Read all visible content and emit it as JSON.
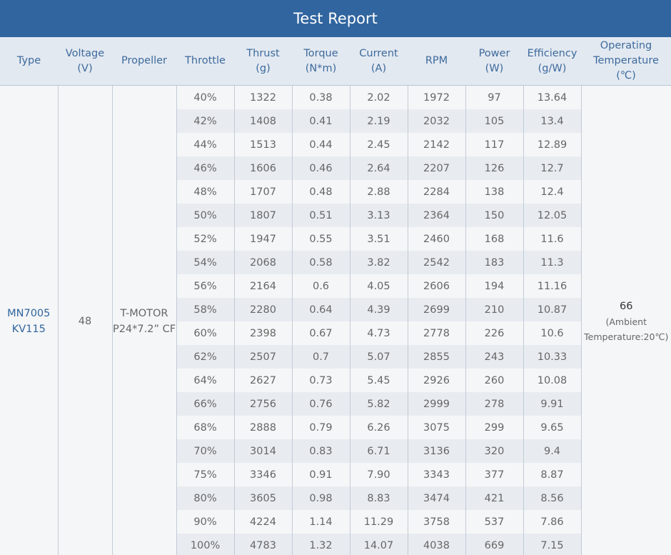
{
  "title": "Test Report",
  "columns": [
    {
      "l1": "Type",
      "l2": "",
      "l3": ""
    },
    {
      "l1": "Voltage",
      "l2": "(V)",
      "l3": ""
    },
    {
      "l1": "Propeller",
      "l2": "",
      "l3": ""
    },
    {
      "l1": "Throttle",
      "l2": "",
      "l3": ""
    },
    {
      "l1": "Thrust",
      "l2": "(g)",
      "l3": ""
    },
    {
      "l1": "Torque",
      "l2": "(N*m)",
      "l3": ""
    },
    {
      "l1": "Current",
      "l2": "(A)",
      "l3": ""
    },
    {
      "l1": "RPM",
      "l2": "",
      "l3": ""
    },
    {
      "l1": "Power",
      "l2": "(W)",
      "l3": ""
    },
    {
      "l1": "Efficiency",
      "l2": "(g/W)",
      "l3": ""
    },
    {
      "l1": "Operating",
      "l2": "Temperature",
      "l3": "(℃)"
    }
  ],
  "merged": {
    "type_line1": "MN7005",
    "type_line2": "KV115",
    "voltage": "48",
    "propeller_line1": "T-MOTOR",
    "propeller_line2": "P24*7.2” CF",
    "temperature_value": "66",
    "temperature_note_line1": "(Ambient",
    "temperature_note_line2": "Temperature:20℃)"
  },
  "rows": [
    [
      "40%",
      "1322",
      "0.38",
      "2.02",
      "1972",
      "97",
      "13.64"
    ],
    [
      "42%",
      "1408",
      "0.41",
      "2.19",
      "2032",
      "105",
      "13.4"
    ],
    [
      "44%",
      "1513",
      "0.44",
      "2.45",
      "2142",
      "117",
      "12.89"
    ],
    [
      "46%",
      "1606",
      "0.46",
      "2.64",
      "2207",
      "126",
      "12.7"
    ],
    [
      "48%",
      "1707",
      "0.48",
      "2.88",
      "2284",
      "138",
      "12.4"
    ],
    [
      "50%",
      "1807",
      "0.51",
      "3.13",
      "2364",
      "150",
      "12.05"
    ],
    [
      "52%",
      "1947",
      "0.55",
      "3.51",
      "2460",
      "168",
      "11.6"
    ],
    [
      "54%",
      "2068",
      "0.58",
      "3.82",
      "2542",
      "183",
      "11.3"
    ],
    [
      "56%",
      "2164",
      "0.6",
      "4.05",
      "2606",
      "194",
      "11.16"
    ],
    [
      "58%",
      "2280",
      "0.64",
      "4.39",
      "2699",
      "210",
      "10.87"
    ],
    [
      "60%",
      "2398",
      "0.67",
      "4.73",
      "2778",
      "226",
      "10.6"
    ],
    [
      "62%",
      "2507",
      "0.7",
      "5.07",
      "2855",
      "243",
      "10.33"
    ],
    [
      "64%",
      "2627",
      "0.73",
      "5.45",
      "2926",
      "260",
      "10.08"
    ],
    [
      "66%",
      "2756",
      "0.76",
      "5.82",
      "2999",
      "278",
      "9.91"
    ],
    [
      "68%",
      "2888",
      "0.79",
      "6.26",
      "3075",
      "299",
      "9.65"
    ],
    [
      "70%",
      "3014",
      "0.83",
      "6.71",
      "3136",
      "320",
      "9.4"
    ],
    [
      "75%",
      "3346",
      "0.91",
      "7.90",
      "3343",
      "377",
      "8.87"
    ],
    [
      "80%",
      "3605",
      "0.98",
      "8.83",
      "3474",
      "421",
      "8.56"
    ],
    [
      "90%",
      "4224",
      "1.14",
      "11.29",
      "3758",
      "537",
      "7.86"
    ],
    [
      "100%",
      "4783",
      "1.32",
      "14.07",
      "4038",
      "669",
      "7.15"
    ]
  ]
}
